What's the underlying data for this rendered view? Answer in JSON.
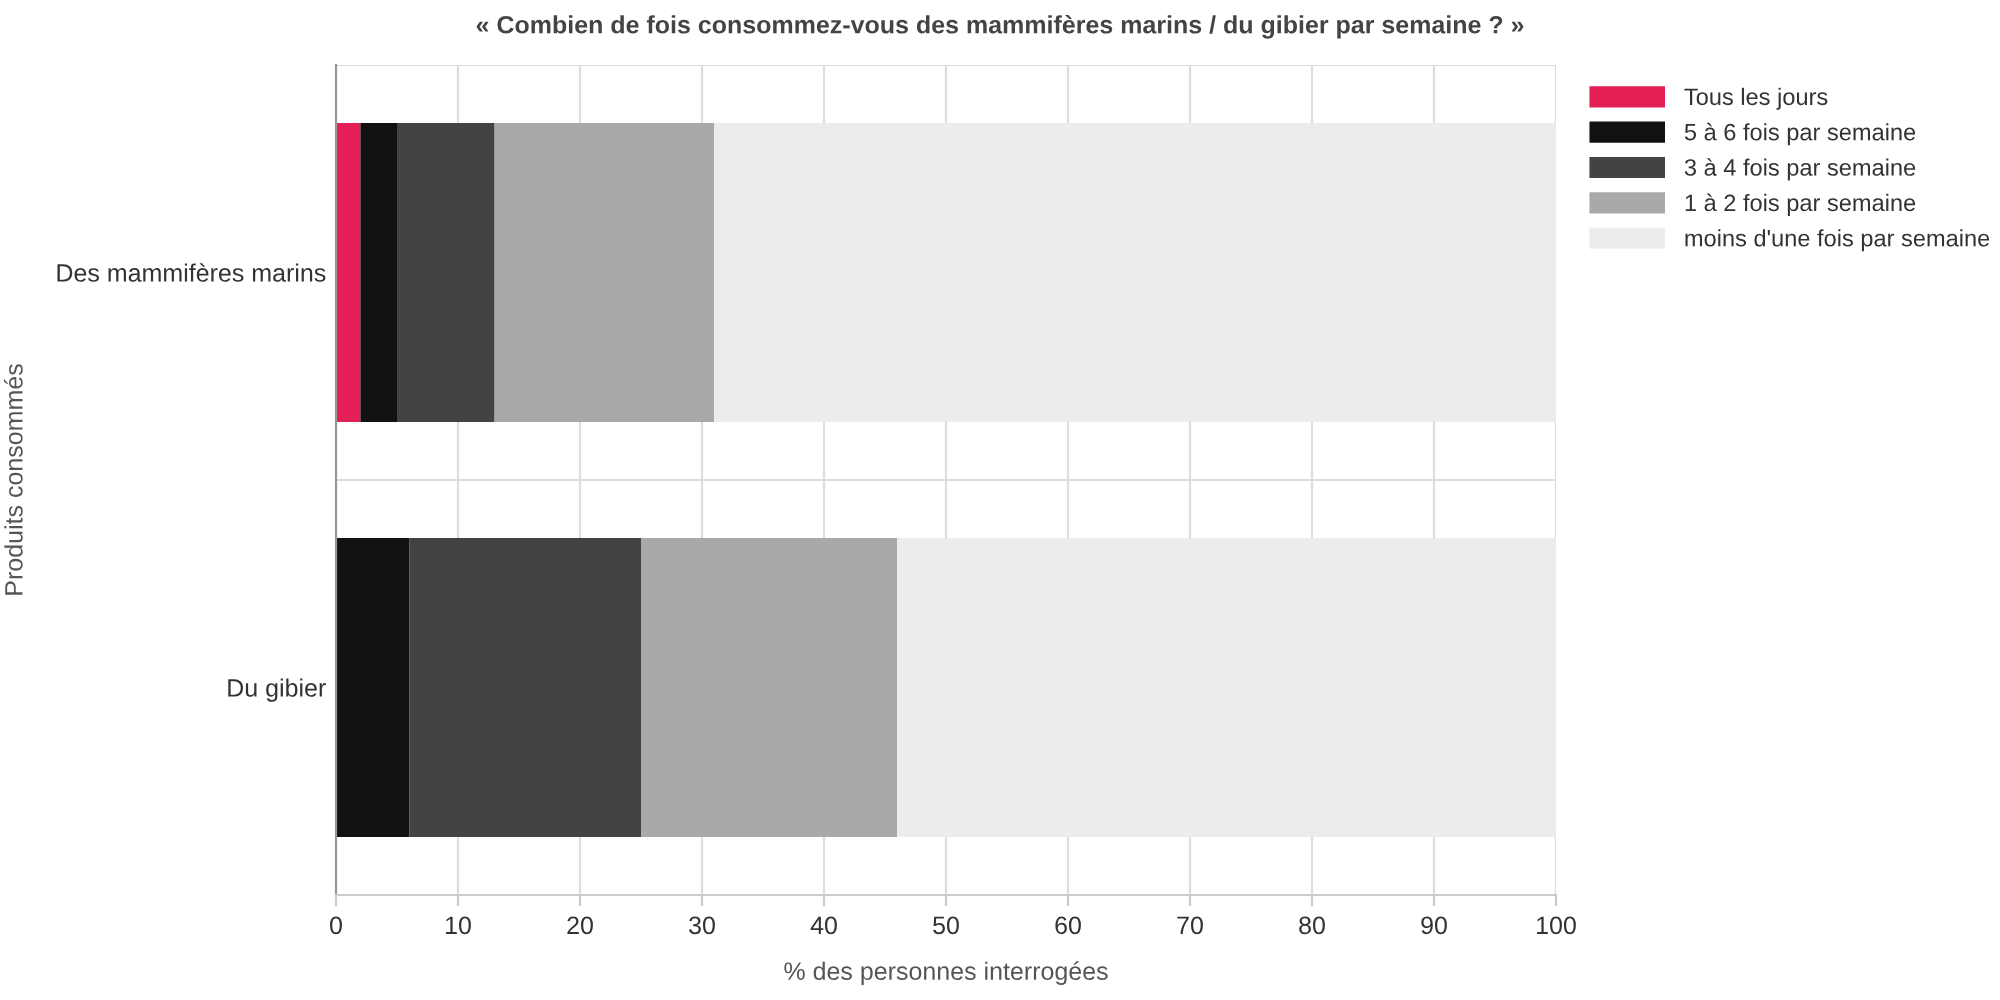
{
  "chart_data": {
    "type": "bar",
    "orientation": "horizontal",
    "stacked": true,
    "title": "« Combien de fois consommez-vous des mammifères marins / du gibier par semaine ? »",
    "xlabel": "% des personnes interrogées",
    "ylabel": "Produits consommés",
    "categories": [
      "Des mammifères marins",
      "Du gibier"
    ],
    "series": [
      {
        "name": "Tous les jours",
        "color": "#e31f55",
        "values": [
          2,
          0
        ]
      },
      {
        "name": "5 à 6 fois par semaine",
        "color": "#111111",
        "values": [
          3,
          6
        ]
      },
      {
        "name": "3 à 4 fois par semaine",
        "color": "#434343",
        "values": [
          8,
          19
        ]
      },
      {
        "name": "1 à 2 fois par semaine",
        "color": "#a9a9a9",
        "values": [
          18,
          21
        ]
      },
      {
        "name": "moins d'une fois par semaine",
        "color": "#ececec",
        "values": [
          69,
          54
        ]
      }
    ],
    "xlim": [
      0,
      100
    ],
    "xticks": [
      0,
      10,
      20,
      30,
      40,
      50,
      60,
      70,
      80,
      90,
      100
    ],
    "grid": true,
    "legend": "top right"
  }
}
